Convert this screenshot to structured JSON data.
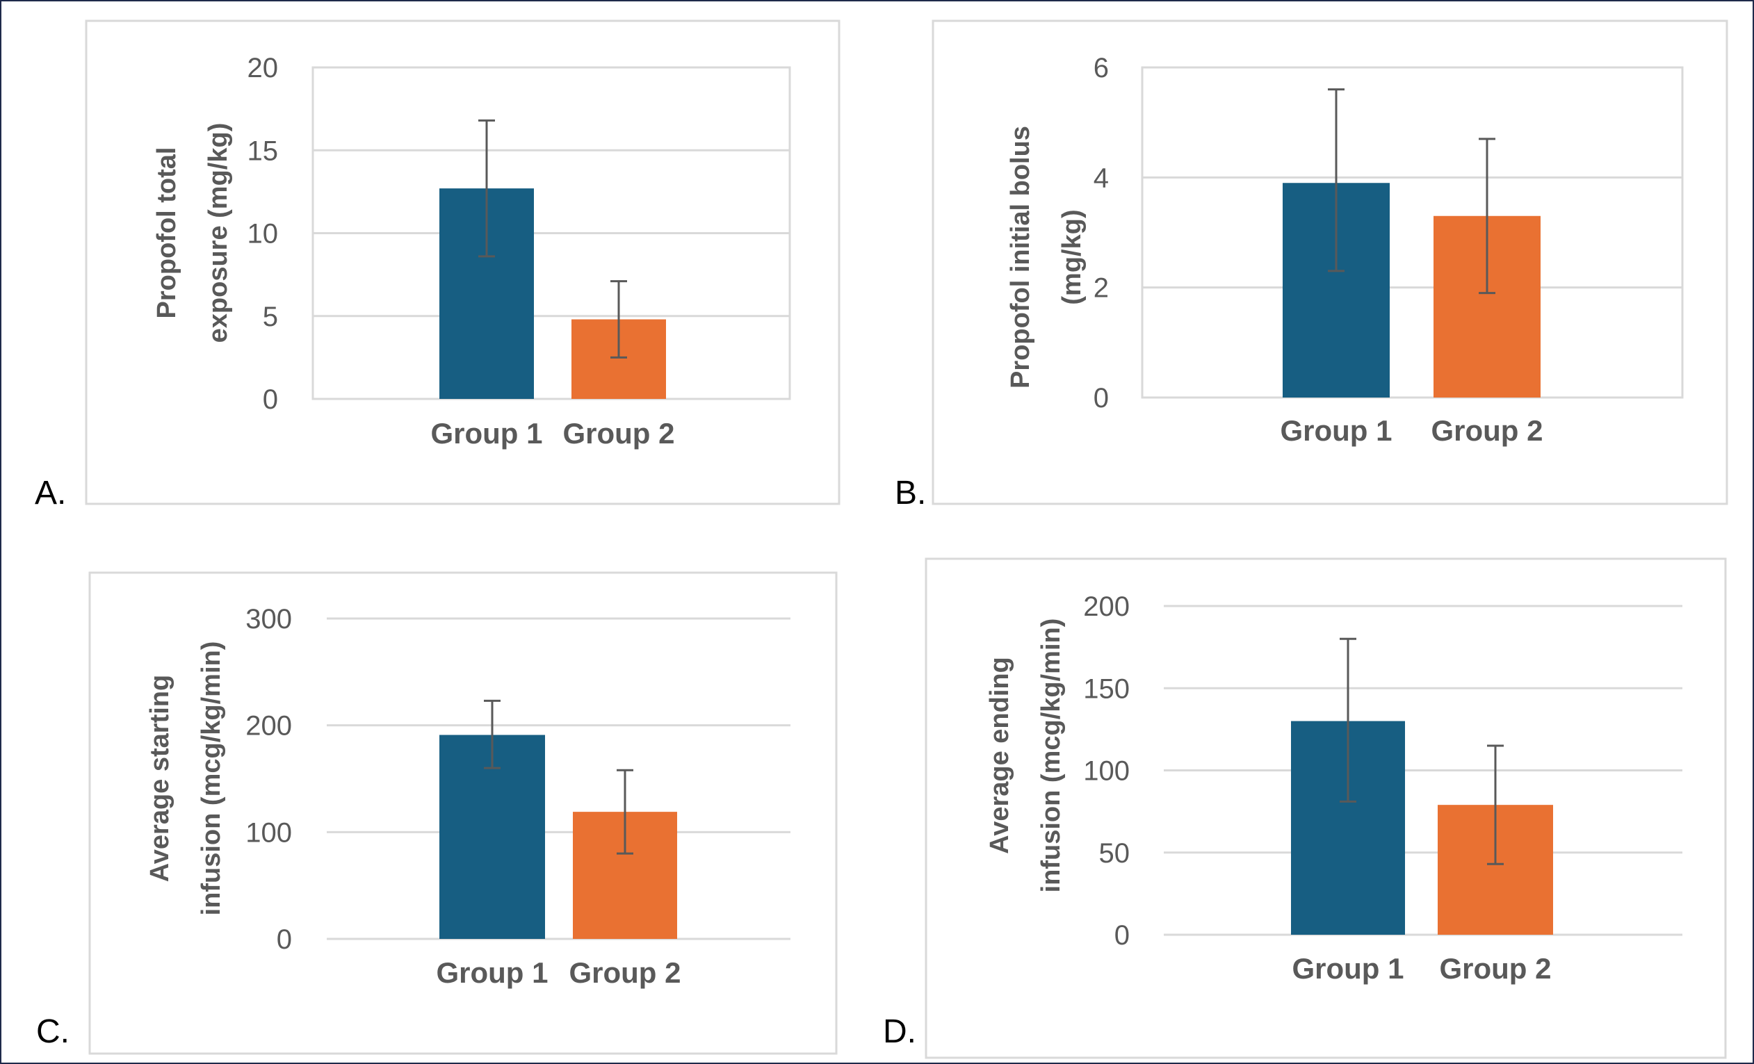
{
  "colors": {
    "group1": "#175E82",
    "group2": "#E97132",
    "gridline": "#D9D9D9",
    "chart_border": "#D9D9D9",
    "tick_text": "#595959",
    "axis_title_text": "#595959",
    "error_bar": "#595959",
    "panel_letter": "#000000",
    "frame": "#1F2A4A"
  },
  "chart_data": [
    {
      "type": "bar",
      "panel_label": "A.",
      "title": "",
      "categories": [
        "Group 1",
        "Group 2"
      ],
      "values": [
        12.7,
        4.8
      ],
      "error_low": [
        8.6,
        2.5
      ],
      "error_high": [
        16.8,
        7.1
      ],
      "ylabel_lines": [
        "Propofol total",
        "exposure (mg/kg)"
      ],
      "yticks": [
        "0",
        "5",
        "10",
        "15",
        "20"
      ],
      "ylim": [
        0,
        20
      ],
      "ytick_step": 5,
      "grid": true,
      "legend": "none",
      "plot_border": true
    },
    {
      "type": "bar",
      "panel_label": "B.",
      "title": "",
      "categories": [
        "Group 1",
        "Group 2"
      ],
      "values": [
        3.9,
        3.3
      ],
      "error_low": [
        2.3,
        1.9
      ],
      "error_high": [
        5.6,
        4.7
      ],
      "ylabel_lines": [
        "Propofol initial bolus",
        "(mg/kg)"
      ],
      "yticks": [
        "0",
        "2",
        "4",
        "6"
      ],
      "ylim": [
        0,
        6
      ],
      "ytick_step": 2,
      "grid": true,
      "legend": "none",
      "plot_border": true
    },
    {
      "type": "bar",
      "panel_label": "C.",
      "title": "",
      "categories": [
        "Group 1",
        "Group 2"
      ],
      "values": [
        191,
        119
      ],
      "error_low": [
        160,
        80
      ],
      "error_high": [
        223,
        158
      ],
      "ylabel_lines": [
        "Average starting",
        "infusion (mcg/kg/min)"
      ],
      "yticks": [
        "0",
        "100",
        "200",
        "300"
      ],
      "ylim": [
        0,
        300
      ],
      "ytick_step": 100,
      "grid": true,
      "legend": "none",
      "plot_border": false
    },
    {
      "type": "bar",
      "panel_label": "D.",
      "title": "",
      "categories": [
        "Group 1",
        "Group 2"
      ],
      "values": [
        130,
        79
      ],
      "error_low": [
        81,
        43
      ],
      "error_high": [
        180,
        115
      ],
      "ylabel_lines": [
        "Average ending",
        "infusion (mcg/kg/min)"
      ],
      "yticks": [
        "0",
        "50",
        "100",
        "150",
        "200"
      ],
      "ylim": [
        0,
        200
      ],
      "ytick_step": 50,
      "grid": true,
      "legend": "none",
      "plot_border": false
    }
  ]
}
